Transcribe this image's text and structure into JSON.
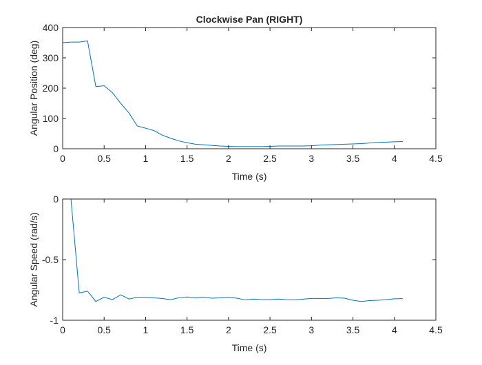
{
  "chart_data": [
    {
      "type": "line",
      "title": "Clockwise Pan (RIGHT)",
      "xlabel": "Time (s)",
      "ylabel": "Angular Position (deg)",
      "xlim": [
        0,
        4.5
      ],
      "ylim": [
        0,
        400
      ],
      "xticks": [
        0,
        0.5,
        1,
        1.5,
        2,
        2.5,
        3,
        3.5,
        4,
        4.5
      ],
      "xtick_labels": [
        "0",
        "0.5",
        "1",
        "1.5",
        "2",
        "2.5",
        "3",
        "3.5",
        "4",
        "4.5"
      ],
      "yticks": [
        0,
        100,
        200,
        300,
        400
      ],
      "ytick_labels": [
        "0",
        "100",
        "200",
        "300",
        "400"
      ],
      "grid": false,
      "color": "#0072BD",
      "series": [
        {
          "x": [
            0,
            0.1,
            0.2,
            0.3,
            0.4,
            0.5,
            0.6,
            0.7,
            0.8,
            0.9,
            1.0,
            1.1,
            1.2,
            1.3,
            1.4,
            1.5,
            1.6,
            1.7,
            1.8,
            1.9,
            2.0,
            2.1,
            2.2,
            2.3,
            2.4,
            2.5,
            2.6,
            2.7,
            2.8,
            2.9,
            3.0,
            3.1,
            3.2,
            3.3,
            3.4,
            3.5,
            3.6,
            3.7,
            3.8,
            3.9,
            4.0,
            4.1
          ],
          "values": [
            350,
            352,
            352,
            356,
            205,
            208,
            185,
            150,
            118,
            75,
            68,
            60,
            45,
            35,
            26,
            20,
            15,
            13,
            11,
            9,
            8,
            7,
            7,
            7,
            7,
            8,
            9,
            9,
            9,
            9,
            10,
            12,
            13,
            14,
            15,
            16,
            17,
            19,
            21,
            22,
            23,
            24
          ]
        }
      ]
    },
    {
      "type": "line",
      "title": "",
      "xlabel": "Time (s)",
      "ylabel": "Angular Speed (rad/s)",
      "xlim": [
        0,
        4.5
      ],
      "ylim": [
        -1,
        0
      ],
      "xticks": [
        0,
        0.5,
        1,
        1.5,
        2,
        2.5,
        3,
        3.5,
        4,
        4.5
      ],
      "xtick_labels": [
        "0",
        "0.5",
        "1",
        "1.5",
        "2",
        "2.5",
        "3",
        "3.5",
        "4",
        "4.5"
      ],
      "yticks": [
        -1,
        -0.5,
        0
      ],
      "ytick_labels": [
        "-1",
        "-0.5",
        "0"
      ],
      "grid": false,
      "color": "#0072BD",
      "series": [
        {
          "x": [
            0.1,
            0.2,
            0.3,
            0.4,
            0.5,
            0.6,
            0.7,
            0.8,
            0.9,
            1.0,
            1.1,
            1.2,
            1.3,
            1.4,
            1.5,
            1.6,
            1.7,
            1.8,
            1.9,
            2.0,
            2.1,
            2.2,
            2.3,
            2.4,
            2.5,
            2.6,
            2.7,
            2.8,
            2.9,
            3.0,
            3.1,
            3.2,
            3.3,
            3.4,
            3.5,
            3.6,
            3.7,
            3.8,
            3.9,
            4.0,
            4.1
          ],
          "values": [
            0,
            -0.775,
            -0.76,
            -0.845,
            -0.81,
            -0.83,
            -0.79,
            -0.825,
            -0.81,
            -0.81,
            -0.815,
            -0.82,
            -0.83,
            -0.815,
            -0.808,
            -0.815,
            -0.81,
            -0.818,
            -0.815,
            -0.81,
            -0.818,
            -0.832,
            -0.825,
            -0.83,
            -0.83,
            -0.825,
            -0.83,
            -0.832,
            -0.826,
            -0.82,
            -0.82,
            -0.82,
            -0.815,
            -0.818,
            -0.835,
            -0.845,
            -0.838,
            -0.835,
            -0.83,
            -0.823,
            -0.822
          ]
        }
      ]
    }
  ]
}
